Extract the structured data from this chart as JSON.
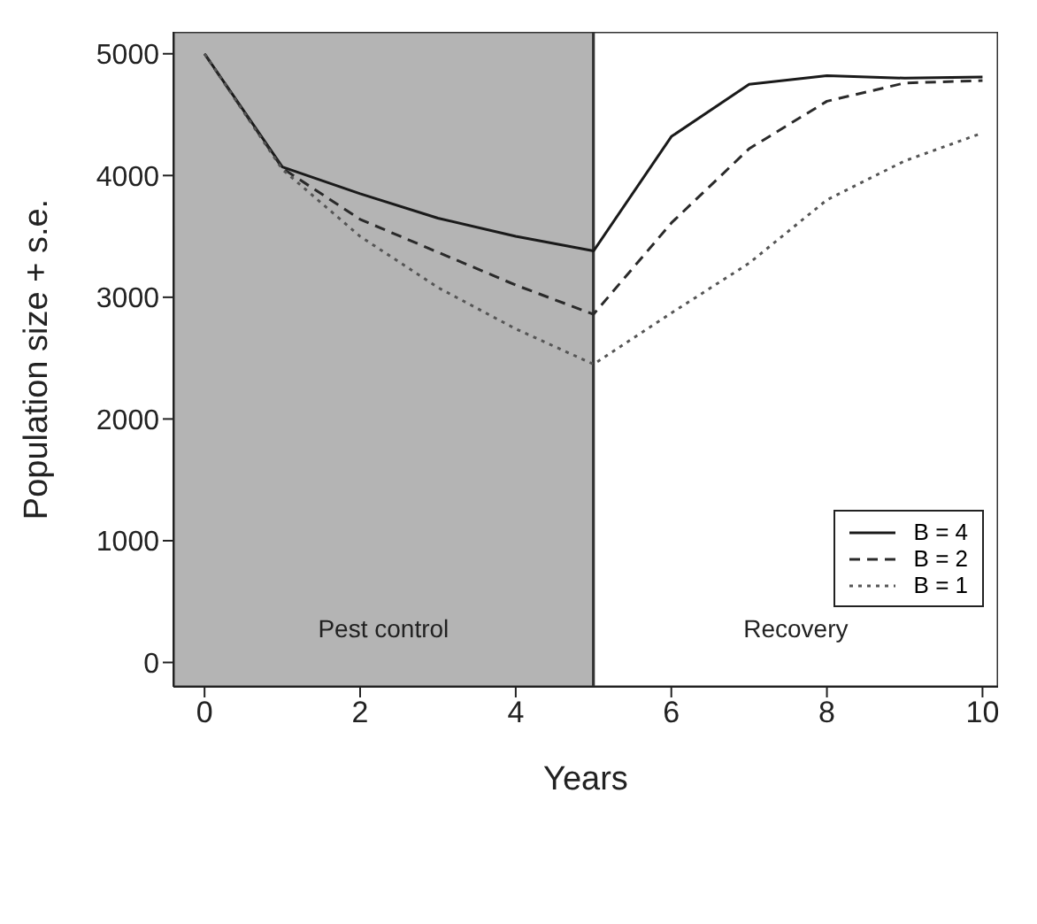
{
  "chart_data": {
    "type": "line",
    "xlabel": "Years",
    "ylabel": "Population size + s.e.",
    "x": [
      0,
      1,
      2,
      3,
      4,
      5,
      6,
      7,
      8,
      9,
      10
    ],
    "series": [
      {
        "name": "B = 4",
        "color": "#1a1a1a",
        "line_style": "solid",
        "values": [
          5000,
          4070,
          3850,
          3650,
          3500,
          3380,
          4320,
          4750,
          4820,
          4800,
          4810
        ]
      },
      {
        "name": "B = 2",
        "color": "#2a2a2a",
        "line_style": "dashed",
        "values": [
          5000,
          4060,
          3640,
          3370,
          3100,
          2860,
          3610,
          4220,
          4610,
          4760,
          4780
        ]
      },
      {
        "name": "B = 1",
        "color": "#555555",
        "line_style": "dotted",
        "values": [
          5000,
          4050,
          3500,
          3080,
          2740,
          2450,
          2870,
          3280,
          3800,
          4120,
          4350
        ]
      }
    ],
    "xlim": [
      -0.4,
      10.2
    ],
    "ylim": [
      -200,
      5180
    ],
    "xticks": [
      0,
      2,
      4,
      6,
      8,
      10
    ],
    "yticks": [
      0,
      1000,
      2000,
      3000,
      4000,
      5000
    ],
    "bands": [
      {
        "axis": "x",
        "from": -0.4,
        "to": 5,
        "label": "Pest control",
        "color": "#b4b4b4"
      },
      {
        "axis": "x",
        "from": 5,
        "to": 10.2,
        "label": "Recovery",
        "color": "#ffffff"
      }
    ],
    "grid": false,
    "legend": "bottom right",
    "marker": "none"
  }
}
